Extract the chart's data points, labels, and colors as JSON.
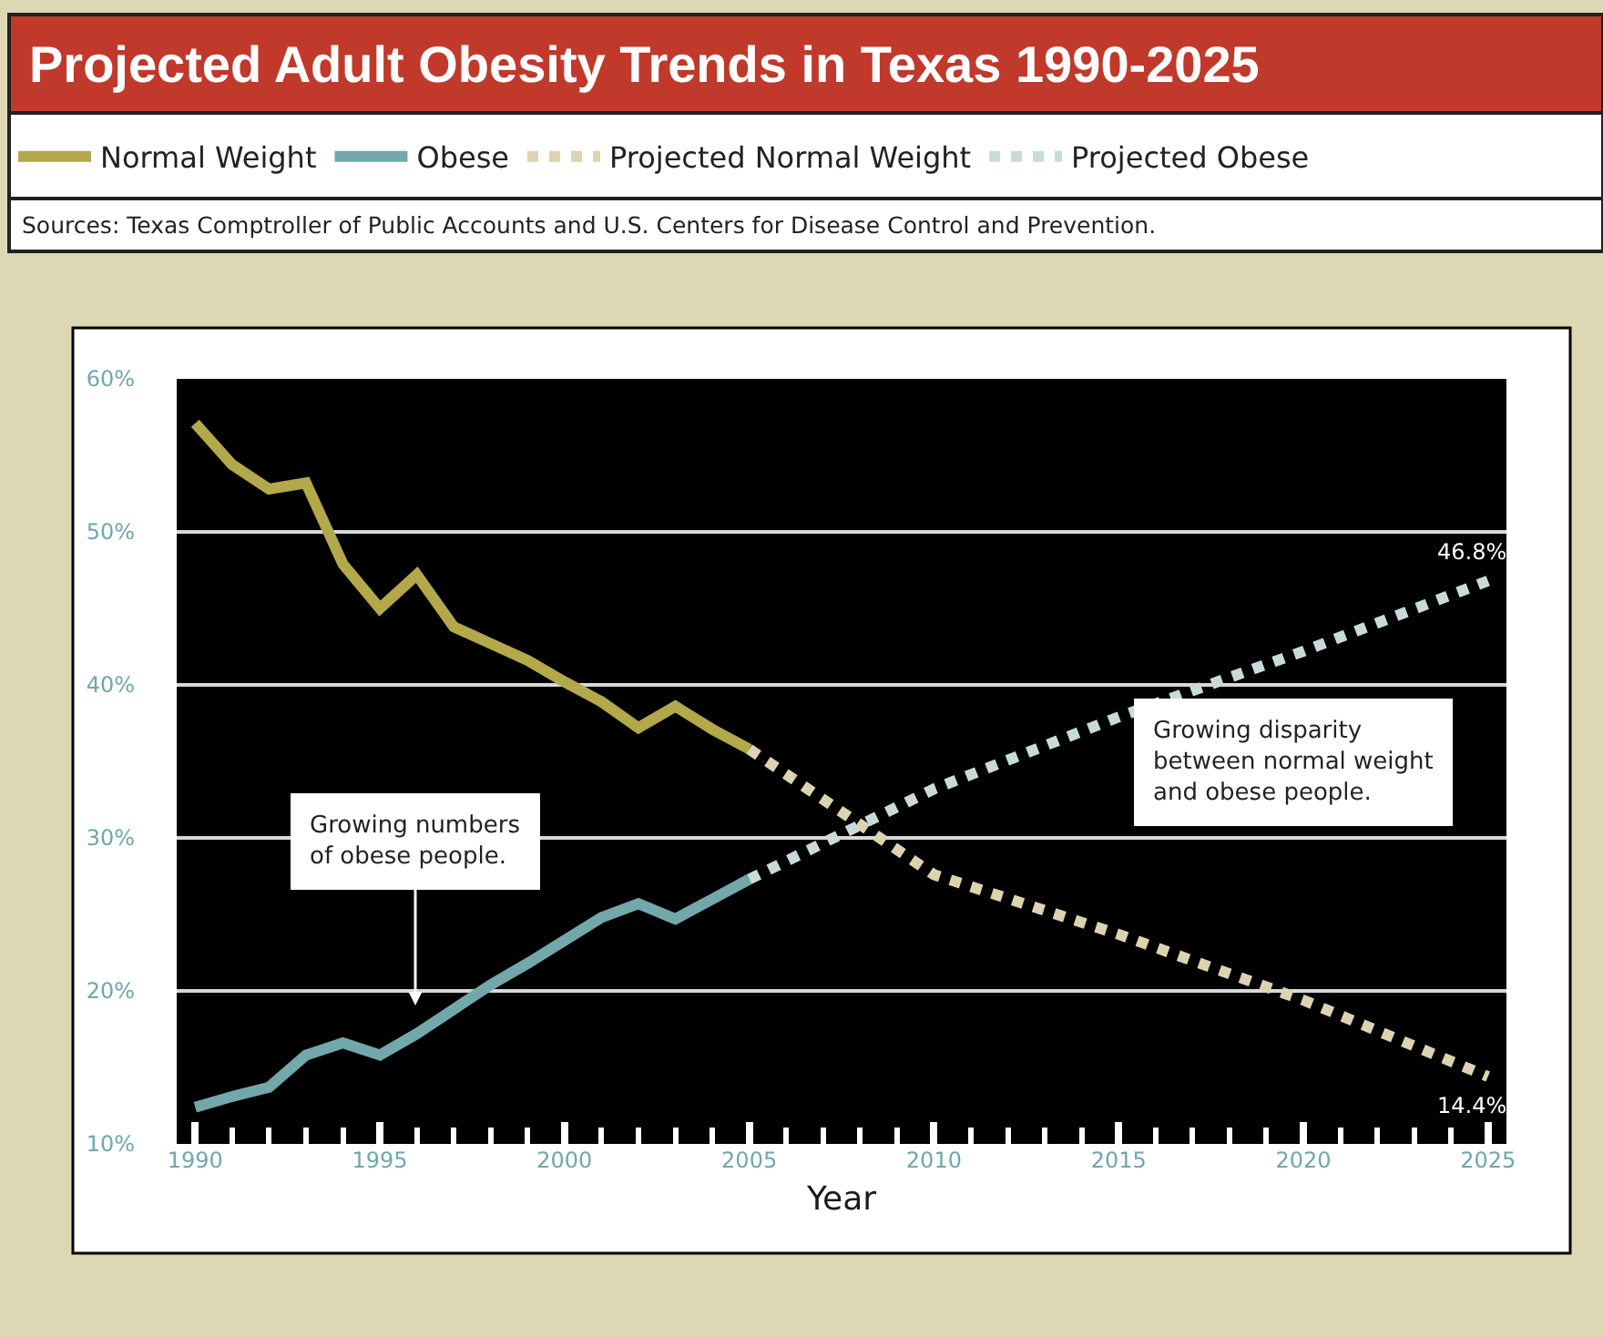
{
  "chart_data": {
    "type": "line",
    "title": "Projected Adult Obesity Trends in Texas 1990-2025",
    "xlabel": "Year",
    "xlim": [
      1989.5,
      2025.5
    ],
    "xticks": [
      1990,
      1995,
      2000,
      2005,
      2010,
      2015,
      2020,
      2025
    ],
    "ylim": [
      10,
      60
    ],
    "yticks": [
      {
        "value": 10,
        "label": "10%"
      },
      {
        "value": 20,
        "label": "20%"
      },
      {
        "value": 30,
        "label": "30%"
      },
      {
        "value": 40,
        "label": "40%"
      },
      {
        "value": 50,
        "label": "50%"
      },
      {
        "value": 60,
        "label": "60%"
      }
    ],
    "grid": "y",
    "legend": "top",
    "marker": "none",
    "series": [
      {
        "name": "Normal Weight",
        "color": "#b3a84a",
        "line_style": "solid",
        "x": [
          1990,
          1991,
          1992,
          1993,
          1994,
          1995,
          1996,
          1997,
          1998,
          1999,
          2000,
          2001,
          2002,
          2003,
          2004,
          2005
        ],
        "values": [
          57.1,
          54.4,
          52.8,
          53.2,
          47.9,
          45.0,
          47.2,
          43.8,
          42.7,
          41.6,
          40.2,
          38.9,
          37.2,
          38.6,
          37.1,
          35.8
        ]
      },
      {
        "name": "Obese",
        "color": "#72a8ab",
        "line_style": "solid",
        "x": [
          1990,
          1991,
          1992,
          1993,
          1994,
          1995,
          1996,
          1997,
          1998,
          1999,
          2000,
          2001,
          2002,
          2003,
          2004,
          2005
        ],
        "values": [
          12.4,
          13.1,
          13.7,
          15.8,
          16.6,
          15.8,
          17.2,
          18.8,
          20.4,
          21.8,
          23.3,
          24.8,
          25.7,
          24.7,
          26.0,
          27.3
        ]
      },
      {
        "name": "Projected Normal Weight",
        "color": "#ddd3b0",
        "line_style": "dotted",
        "x": [
          2005,
          2010,
          2015,
          2020,
          2025
        ],
        "values": [
          35.8,
          27.6,
          23.7,
          19.4,
          14.4
        ],
        "value_labels": [
          null,
          null,
          null,
          null,
          "14.4%"
        ]
      },
      {
        "name": "Projected Obese",
        "color": "#c9dadb",
        "line_style": "dotted",
        "x": [
          2005,
          2010,
          2015,
          2020,
          2025
        ],
        "values": [
          27.3,
          33.2,
          37.9,
          42.2,
          46.8
        ],
        "value_labels": [
          null,
          null,
          null,
          null,
          "46.8%"
        ]
      }
    ],
    "annotations": [
      "Growing numbers\nof obese people.",
      "Growing disparity\nbetween normal weight\nand obese people.",
      "Sources: Texas Comptroller of Public Accounts and U.S. Centers for Disease Control and Prevention."
    ]
  }
}
